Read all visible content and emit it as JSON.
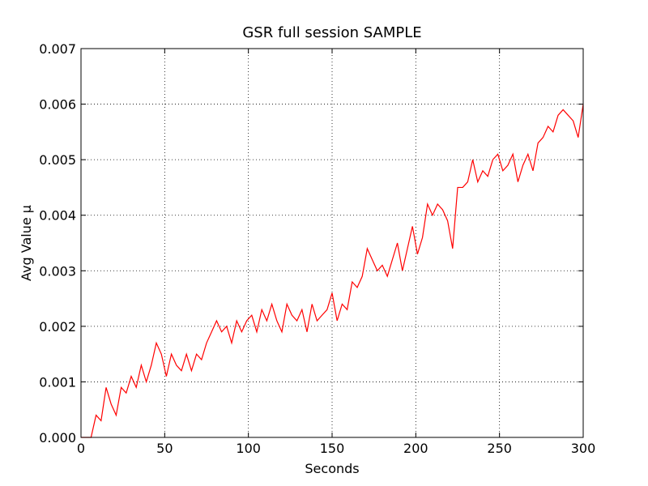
{
  "chart_data": {
    "type": "line",
    "title": "GSR full session SAMPLE",
    "xlabel": "Seconds",
    "ylabel": "Avg Value µ",
    "x": [
      0,
      3,
      6,
      9,
      12,
      15,
      18,
      21,
      24,
      27,
      30,
      33,
      36,
      39,
      42,
      45,
      48,
      51,
      54,
      57,
      60,
      63,
      66,
      69,
      72,
      75,
      78,
      81,
      84,
      87,
      90,
      93,
      96,
      99,
      102,
      105,
      108,
      111,
      114,
      117,
      120,
      123,
      126,
      129,
      132,
      135,
      138,
      141,
      144,
      147,
      150,
      153,
      156,
      159,
      162,
      165,
      168,
      171,
      174,
      177,
      180,
      183,
      186,
      189,
      192,
      195,
      198,
      201,
      204,
      207,
      210,
      213,
      216,
      219,
      222,
      225,
      228,
      231,
      234,
      237,
      240,
      243,
      246,
      249,
      252,
      255,
      258,
      261,
      264,
      267,
      270,
      273,
      276,
      279,
      282,
      285,
      288,
      291,
      294,
      297,
      300
    ],
    "series": [
      {
        "name": "GSR",
        "color": "#ff0000",
        "values": [
          0,
          0,
          0,
          0.0004,
          0.0003,
          0.0009,
          0.0006,
          0.0004,
          0.0009,
          0.0008,
          0.0011,
          0.0009,
          0.0013,
          0.001,
          0.0013,
          0.0017,
          0.0015,
          0.0011,
          0.0015,
          0.0013,
          0.0012,
          0.0015,
          0.0012,
          0.0015,
          0.0014,
          0.0017,
          0.0019,
          0.0021,
          0.0019,
          0.002,
          0.0017,
          0.0021,
          0.0019,
          0.0021,
          0.0022,
          0.0019,
          0.0023,
          0.0021,
          0.0024,
          0.0021,
          0.0019,
          0.0024,
          0.0022,
          0.0021,
          0.0023,
          0.0019,
          0.0024,
          0.0021,
          0.0022,
          0.0023,
          0.0026,
          0.0021,
          0.0024,
          0.0023,
          0.0028,
          0.0027,
          0.0029,
          0.0034,
          0.0032,
          0.003,
          0.0031,
          0.0029,
          0.0032,
          0.0035,
          0.003,
          0.0034,
          0.0038,
          0.0033,
          0.0036,
          0.0042,
          0.004,
          0.0042,
          0.0041,
          0.0039,
          0.0034,
          0.0045,
          0.0045,
          0.0046,
          0.005,
          0.0046,
          0.0048,
          0.0047,
          0.005,
          0.0051,
          0.0048,
          0.0049,
          0.0051,
          0.0046,
          0.0049,
          0.0051,
          0.0048,
          0.0053,
          0.0054,
          0.0056,
          0.0055,
          0.0058,
          0.0059,
          0.0058,
          0.0057,
          0.0054,
          0.006
        ]
      }
    ],
    "xlim": [
      0,
      300
    ],
    "xticks": [
      0,
      50,
      100,
      150,
      200,
      250,
      300
    ],
    "ylim": [
      0,
      0.007
    ],
    "yticks": [
      {
        "value": 0,
        "label": "0.000"
      },
      {
        "value": 0.001,
        "label": "0.001"
      },
      {
        "value": 0.002,
        "label": "0.002"
      },
      {
        "value": 0.003,
        "label": "0.003"
      },
      {
        "value": 0.004,
        "label": "0.004"
      },
      {
        "value": 0.005,
        "label": "0.005"
      },
      {
        "value": 0.006,
        "label": "0.006"
      },
      {
        "value": 0.007,
        "label": "0.007"
      }
    ],
    "grid": true
  }
}
